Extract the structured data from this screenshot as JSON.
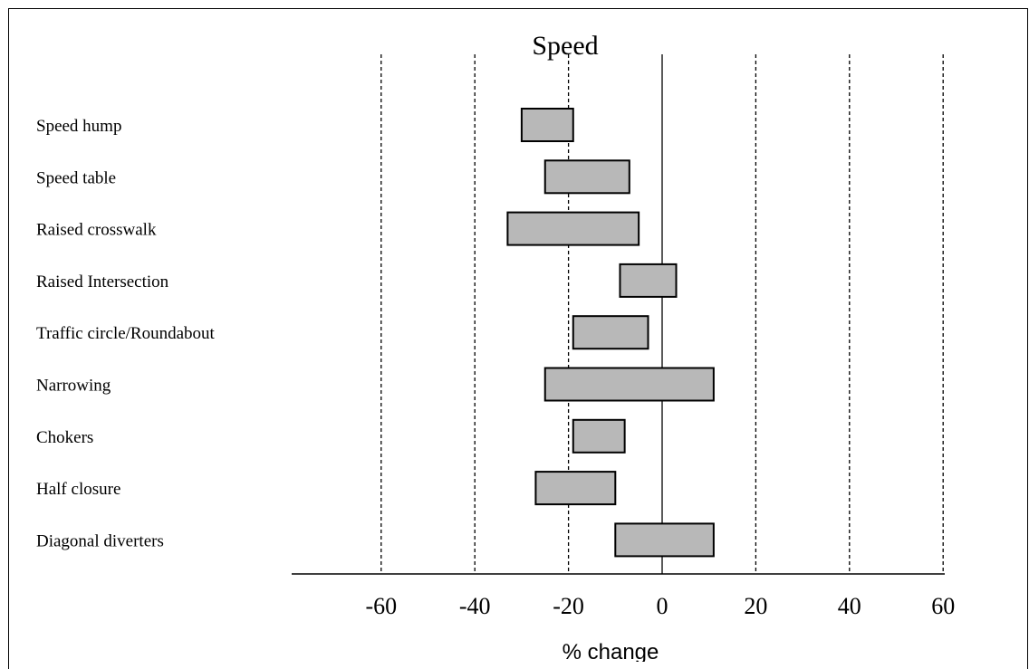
{
  "chart_data": {
    "type": "bar",
    "orientation": "horizontal",
    "title": "Speed",
    "xlabel": "% change",
    "xlim": [
      -75,
      67
    ],
    "xticks": [
      -60,
      -40,
      -20,
      0,
      20,
      40,
      60
    ],
    "grid": "vertical dashed at -60, -40, -20, 20, 40, 60",
    "categories": [
      "Speed hump",
      "Speed table",
      "Raised crosswalk",
      "Raised Intersection",
      "Traffic circle/Roundabout",
      "Narrowing",
      "Chokers",
      "Half closure",
      "Diagonal diverters"
    ],
    "ranges": [
      {
        "low": -30,
        "high": -19
      },
      {
        "low": -25,
        "high": -7
      },
      {
        "low": -33,
        "high": -5
      },
      {
        "low": -9,
        "high": 3
      },
      {
        "low": -19,
        "high": -3
      },
      {
        "low": -25,
        "high": 11
      },
      {
        "low": -19,
        "high": -8
      },
      {
        "low": -27,
        "high": -10
      },
      {
        "low": -10,
        "high": 11
      }
    ]
  }
}
